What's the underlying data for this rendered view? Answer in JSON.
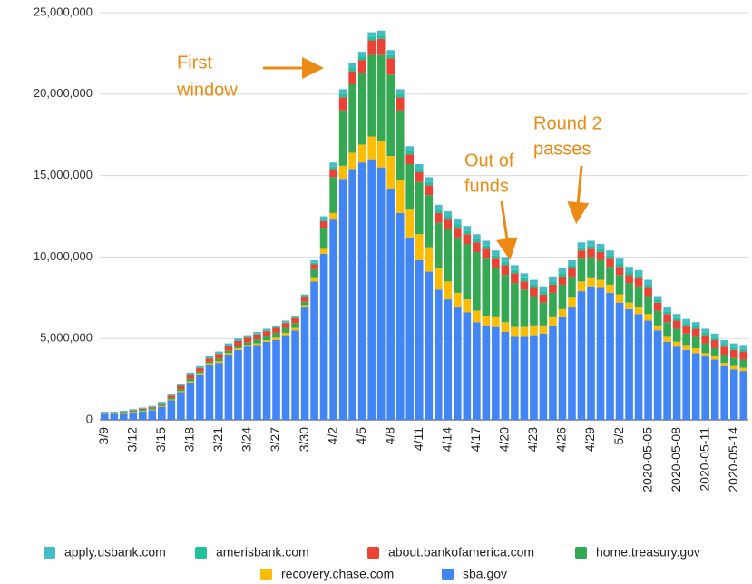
{
  "chart_data": {
    "type": "stacked_bar",
    "categories": [
      "3/9",
      null,
      null,
      "3/12",
      null,
      null,
      "3/15",
      null,
      null,
      "3/18",
      null,
      null,
      "3/21",
      null,
      null,
      "3/24",
      null,
      null,
      "3/27",
      null,
      null,
      "3/30",
      null,
      null,
      "4/2",
      null,
      null,
      "4/5",
      null,
      null,
      "4/8",
      null,
      null,
      "4/11",
      null,
      null,
      "4/14",
      null,
      null,
      "4/17",
      null,
      null,
      "4/20",
      null,
      null,
      "4/23",
      null,
      null,
      "4/26",
      null,
      null,
      "4/29",
      null,
      null,
      "5/2",
      null,
      null,
      "2020-05-05",
      null,
      null,
      "2020-05-08",
      null,
      null,
      "2020-05-11",
      null,
      null,
      "2020-05-14",
      null
    ],
    "series": [
      {
        "name": "sba.gov",
        "color": "#4285f4",
        "values": [
          350000,
          350000,
          380000,
          450000,
          520000,
          600000,
          800000,
          1200000,
          1700000,
          2300000,
          2800000,
          3400000,
          3500000,
          4000000,
          4300000,
          4500000,
          4600000,
          4800000,
          4900000,
          5200000,
          5500000,
          6900000,
          8500000,
          10200000,
          12300000,
          14800000,
          15400000,
          15800000,
          16000000,
          15500000,
          14200000,
          12700000,
          11200000,
          9800000,
          9100000,
          8000000,
          7400000,
          6900000,
          6600000,
          6000000,
          5800000,
          5700000,
          5400000,
          5100000,
          5100000,
          5200000,
          5300000,
          5800000,
          6300000,
          6900000,
          7900000,
          8200000,
          8100000,
          7800000,
          7200000,
          6800000,
          6500000,
          6100000,
          5500000,
          4800000,
          4500000,
          4300000,
          4100000,
          3900000,
          3700000,
          3300000,
          3100000,
          3000000
        ]
      },
      {
        "name": "recovery.chase.com",
        "color": "#fbbc04",
        "values": [
          20000,
          20000,
          20000,
          30000,
          30000,
          30000,
          40000,
          50000,
          60000,
          70000,
          70000,
          80000,
          100000,
          100000,
          100000,
          100000,
          100000,
          100000,
          150000,
          150000,
          150000,
          150000,
          200000,
          300000,
          400000,
          800000,
          1000000,
          1100000,
          1400000,
          1600000,
          2000000,
          2000000,
          1700000,
          1600000,
          1500000,
          1300000,
          1100000,
          900000,
          800000,
          700000,
          600000,
          600000,
          600000,
          600000,
          600000,
          600000,
          500000,
          500000,
          500000,
          600000,
          600000,
          500000,
          500000,
          500000,
          500000,
          400000,
          400000,
          400000,
          300000,
          300000,
          300000,
          300000,
          300000,
          200000,
          200000,
          200000,
          200000,
          200000
        ]
      },
      {
        "name": "home.treasury.gov",
        "color": "#34a853",
        "values": [
          30000,
          30000,
          40000,
          50000,
          60000,
          70000,
          60000,
          90000,
          130000,
          150000,
          100000,
          90000,
          150000,
          150000,
          150000,
          150000,
          250000,
          250000,
          300000,
          300000,
          300000,
          200000,
          550000,
          1300000,
          2200000,
          3400000,
          4200000,
          4400000,
          5000000,
          5300000,
          5000000,
          4300000,
          2800000,
          3200000,
          3200000,
          2800000,
          3200000,
          3400000,
          3400000,
          3600000,
          3500000,
          3000000,
          2900000,
          2700000,
          2300000,
          1800000,
          1400000,
          1500000,
          1500000,
          1300000,
          1400000,
          1300000,
          1200000,
          1100000,
          1200000,
          1200000,
          1300000,
          1100000,
          900000,
          900000,
          800000,
          700000,
          700000,
          600000,
          500000,
          500000,
          500000,
          500000
        ]
      },
      {
        "name": "about.bankofamerica.com",
        "color": "#ea4335",
        "values": [
          30000,
          30000,
          40000,
          50000,
          60000,
          70000,
          100000,
          150000,
          200000,
          250000,
          200000,
          200000,
          300000,
          300000,
          300000,
          300000,
          300000,
          300000,
          300000,
          300000,
          300000,
          300000,
          300000,
          400000,
          500000,
          800000,
          800000,
          800000,
          900000,
          1000000,
          1000000,
          800000,
          600000,
          600000,
          600000,
          600000,
          600000,
          600000,
          600000,
          600000,
          600000,
          600000,
          600000,
          600000,
          500000,
          500000,
          500000,
          500000,
          500000,
          500000,
          500000,
          500000,
          500000,
          500000,
          500000,
          500000,
          500000,
          500000,
          500000,
          500000,
          500000,
          500000,
          500000,
          500000,
          500000,
          500000,
          500000,
          500000
        ]
      },
      {
        "name": "amerisbank.com",
        "color": "#1fc29a",
        "values": [
          20000,
          20000,
          20000,
          20000,
          20000,
          20000,
          30000,
          30000,
          30000,
          40000,
          40000,
          40000,
          50000,
          50000,
          50000,
          50000,
          50000,
          50000,
          50000,
          50000,
          50000,
          50000,
          100000,
          100000,
          150000,
          200000,
          200000,
          200000,
          200000,
          200000,
          200000,
          200000,
          200000,
          200000,
          200000,
          200000,
          200000,
          200000,
          200000,
          200000,
          200000,
          200000,
          200000,
          200000,
          200000,
          200000,
          200000,
          200000,
          200000,
          200000,
          200000,
          200000,
          200000,
          200000,
          200000,
          200000,
          200000,
          200000,
          150000,
          150000,
          150000,
          150000,
          150000,
          150000,
          150000,
          150000,
          150000,
          150000
        ]
      },
      {
        "name": "apply.usbank.com",
        "color": "#46bdc6",
        "values": [
          50000,
          50000,
          50000,
          50000,
          60000,
          60000,
          70000,
          80000,
          80000,
          90000,
          90000,
          90000,
          100000,
          100000,
          100000,
          100000,
          100000,
          100000,
          100000,
          100000,
          100000,
          100000,
          150000,
          200000,
          250000,
          300000,
          300000,
          300000,
          300000,
          300000,
          300000,
          300000,
          300000,
          300000,
          300000,
          300000,
          300000,
          300000,
          300000,
          300000,
          300000,
          300000,
          300000,
          300000,
          300000,
          300000,
          300000,
          300000,
          300000,
          300000,
          300000,
          300000,
          300000,
          300000,
          300000,
          300000,
          300000,
          300000,
          250000,
          250000,
          250000,
          250000,
          250000,
          250000,
          250000,
          250000,
          250000,
          250000
        ]
      }
    ],
    "ylim": [
      0,
      25000000
    ],
    "yticks": [
      0,
      {
        "value": 5000000,
        "label": "5,000,000"
      },
      {
        "value": 10000000,
        "label": "10,000,000"
      },
      {
        "value": 15000000,
        "label": "15,000,000"
      },
      {
        "value": 20000000,
        "label": "20,000,000"
      },
      {
        "value": 25000000,
        "label": "25,000,000"
      }
    ],
    "grid": true,
    "annotations": [
      {
        "text": [
          "First",
          "window"
        ]
      },
      {
        "text": [
          "Out of",
          "funds"
        ]
      },
      {
        "text": [
          "Round 2",
          "passes"
        ]
      }
    ]
  }
}
